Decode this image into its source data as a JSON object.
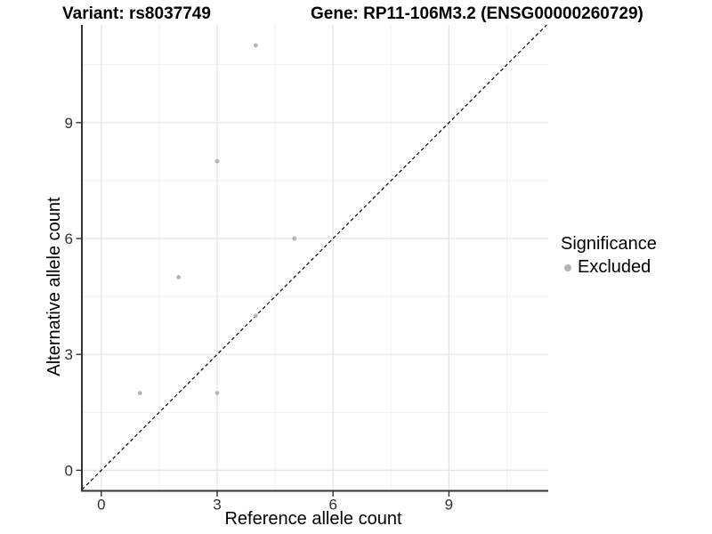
{
  "chart_data": {
    "type": "scatter",
    "titles": [
      "Variant: rs8037749",
      "Gene: RP11-106M3.2 (ENSG00000260729)"
    ],
    "xlabel": "Reference allele count",
    "ylabel": "Alternative allele count",
    "xlim": [
      -0.55,
      11.6
    ],
    "ylim": [
      -0.55,
      11.6
    ],
    "x_ticks": [
      0,
      3,
      6,
      9
    ],
    "y_ticks": [
      0,
      3,
      6,
      9
    ],
    "x_minor_ticks": [
      1.5,
      4.5,
      7.5,
      10.5
    ],
    "y_minor_ticks": [
      1.5,
      4.5,
      7.5,
      10.5
    ],
    "grid": true,
    "legend_title": "Significance",
    "legend_position": "right",
    "series": [
      {
        "name": "Excluded",
        "color": "#b4b4b4",
        "points": [
          {
            "x": 1,
            "y": 2
          },
          {
            "x": 2,
            "y": 5
          },
          {
            "x": 3,
            "y": 2
          },
          {
            "x": 3,
            "y": 8
          },
          {
            "x": 4,
            "y": 4
          },
          {
            "x": 4,
            "y": 11
          },
          {
            "x": 5,
            "y": 6
          }
        ]
      }
    ],
    "reference_line": {
      "type": "identity y=x",
      "style": "dashed",
      "color": "#000000",
      "from": {
        "x": -0.5,
        "y": -0.5
      },
      "to": {
        "x": 11.53,
        "y": 11.53
      }
    }
  },
  "style": {
    "background": "#ffffff",
    "point_color": "#b4b4b4",
    "axis_line_color": "#333333",
    "tick_label_color": "#303030",
    "grid_major_color": "#e3e3e3",
    "grid_minor_color": "#f1f1f1",
    "reference_line_color": "#000000"
  }
}
